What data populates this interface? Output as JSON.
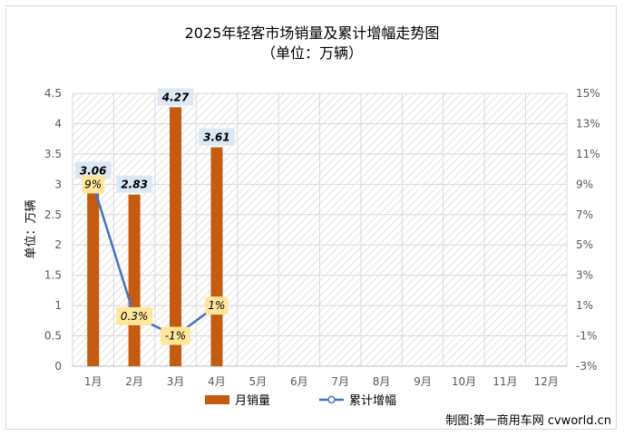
{
  "chart_data": {
    "type": "bar",
    "title": "2025年轻客市场销量及累计增幅走势图",
    "subtitle": "（单位：万辆）",
    "ylabel": "单位：万辆",
    "categories": [
      "1月",
      "2月",
      "3月",
      "4月",
      "5月",
      "6月",
      "7月",
      "8月",
      "9月",
      "10月",
      "11月",
      "12月"
    ],
    "ylim": [
      0,
      4.5
    ],
    "y_ticks": [
      "0",
      "0.5",
      "1",
      "1.5",
      "2",
      "2.5",
      "3",
      "3.5",
      "4",
      "4.5"
    ],
    "y2lim": [
      -3,
      15
    ],
    "y2_ticks": [
      "-3%",
      "-1%",
      "1%",
      "3%",
      "5%",
      "7%",
      "9%",
      "11%",
      "13%",
      "15%"
    ],
    "series": [
      {
        "name": "月销量",
        "type": "bar",
        "axis": "left",
        "color": "#c55a11",
        "values": [
          3.06,
          2.83,
          4.27,
          3.61,
          null,
          null,
          null,
          null,
          null,
          null,
          null,
          null
        ],
        "labels": [
          "3.06",
          "2.83",
          "4.27",
          "3.61"
        ]
      },
      {
        "name": "累计增幅",
        "type": "line",
        "axis": "right",
        "color": "#4472c4",
        "values": [
          9,
          0.3,
          -1,
          1,
          null,
          null,
          null,
          null,
          null,
          null,
          null,
          null
        ],
        "labels": [
          "9%",
          "0.3%",
          "-1%",
          "1%"
        ]
      }
    ],
    "grid": true,
    "legend_position": "bottom",
    "label_colors": {
      "bar_label_bg": "#dce9f5",
      "line_label_bg": "#ffe699"
    }
  },
  "footer": {
    "credit": "制图:第一商用车网 cvworld.cn"
  }
}
